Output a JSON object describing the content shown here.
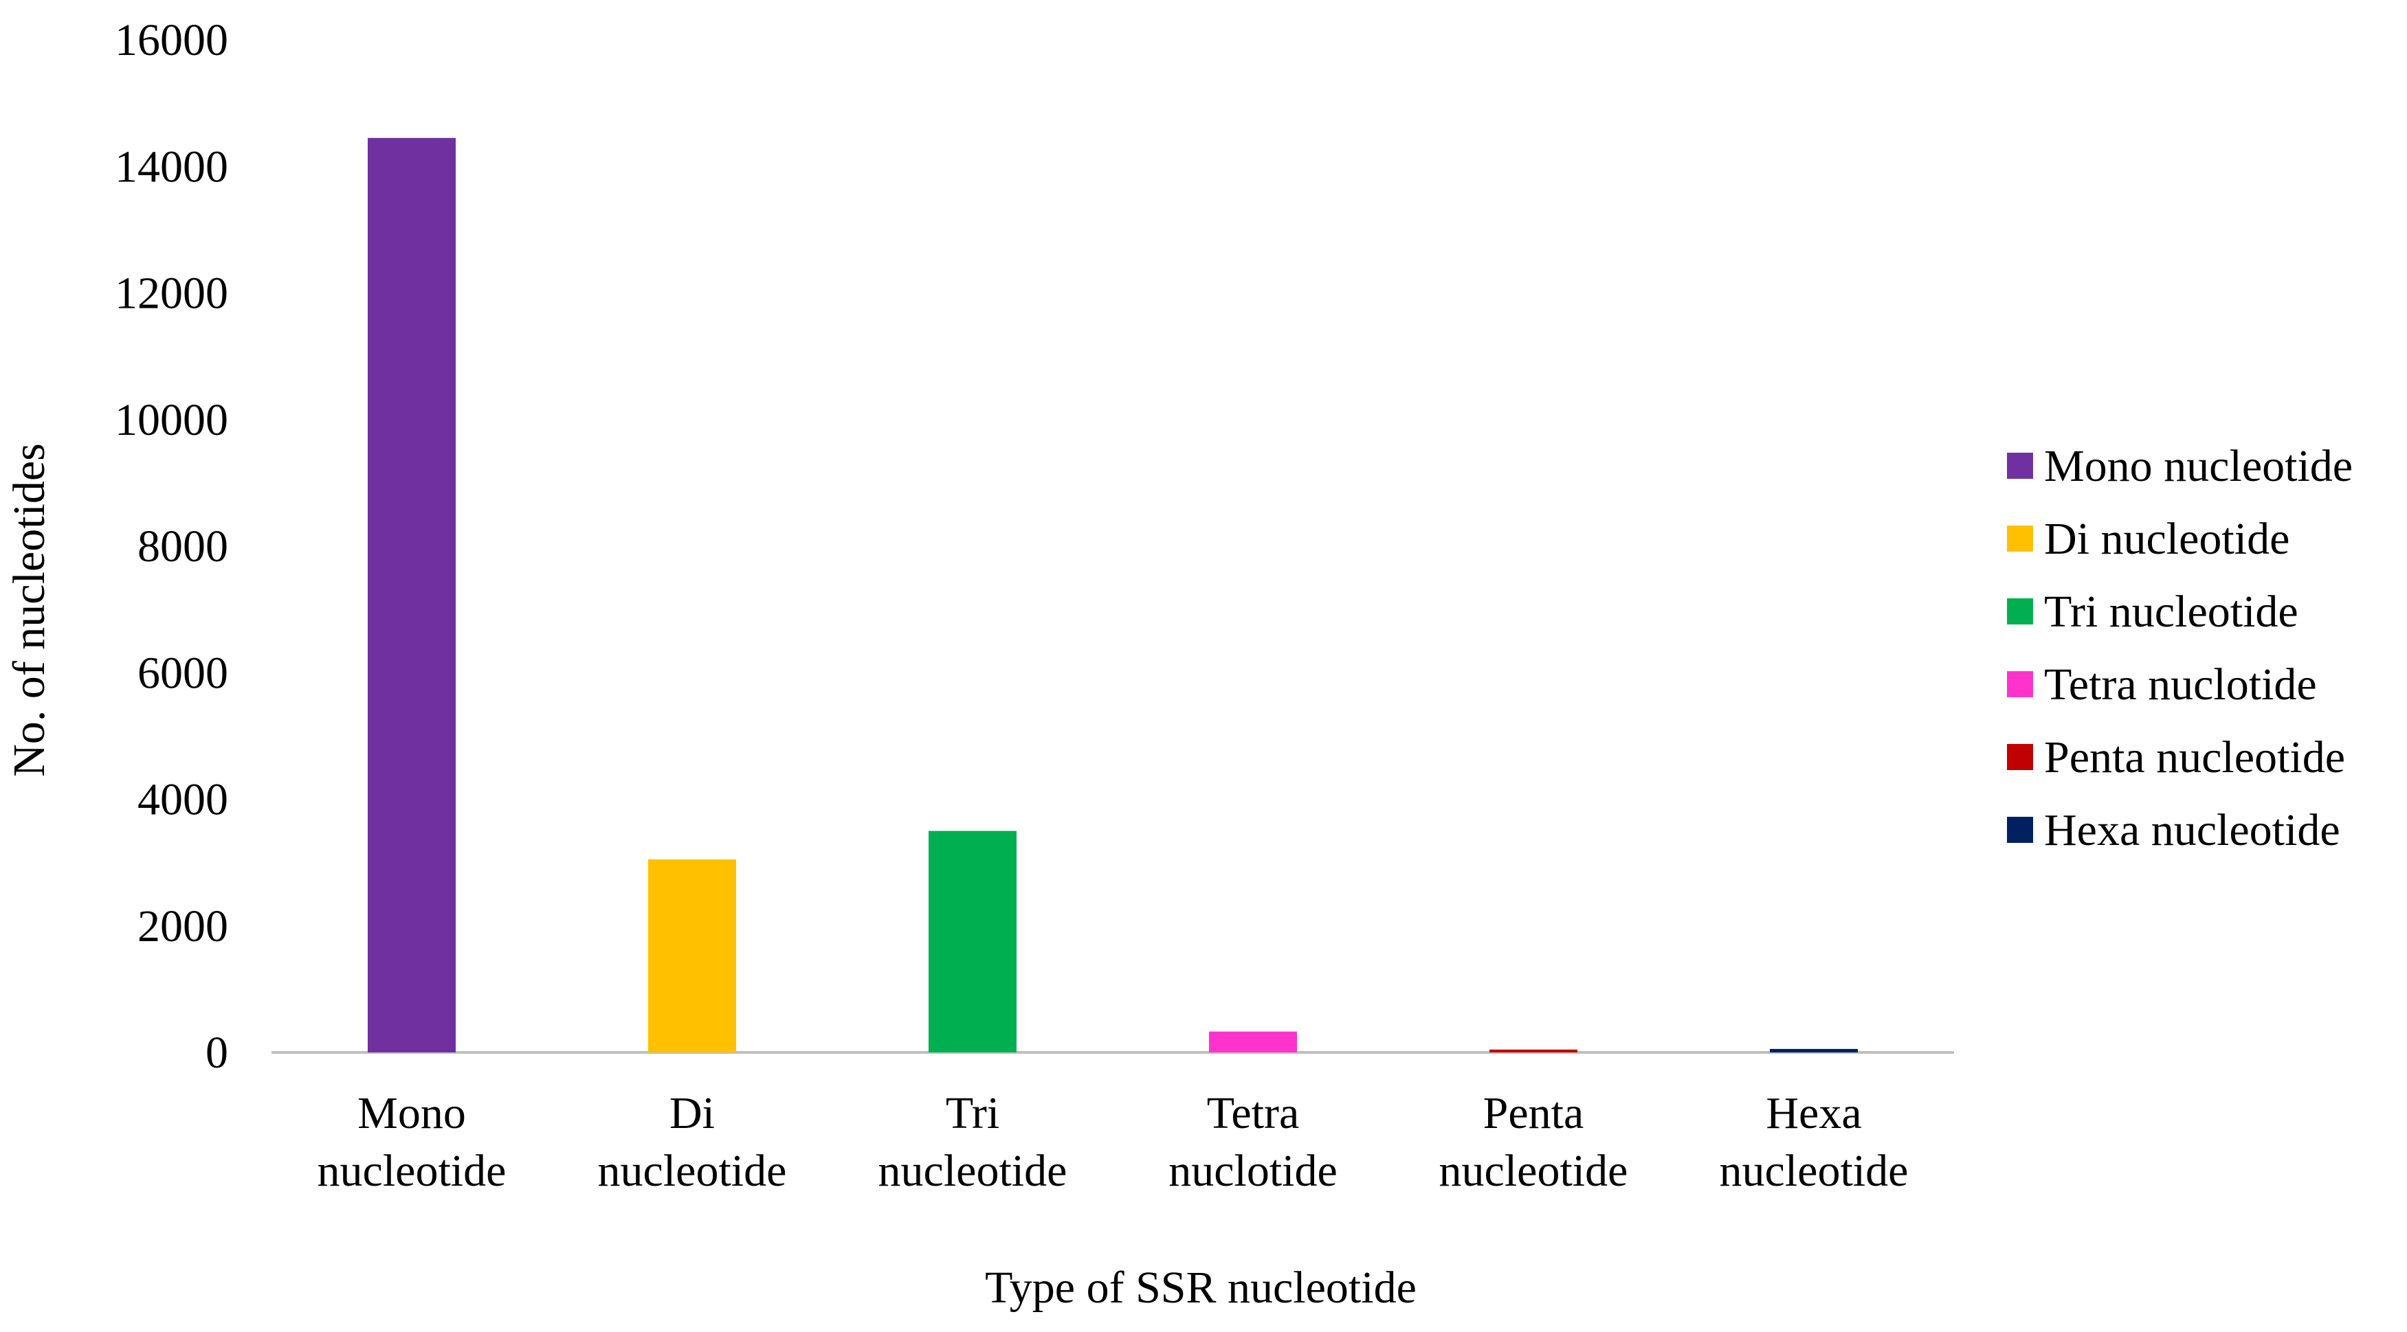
{
  "chart_data": {
    "type": "bar",
    "xlabel": "Type of SSR nucleotide",
    "ylabel": "No. of nucleotides",
    "ylim": [
      0,
      16000
    ],
    "yticks": [
      0,
      2000,
      4000,
      6000,
      8000,
      10000,
      12000,
      14000,
      16000
    ],
    "grid": false,
    "legend_position": "right",
    "categories": [
      {
        "lines": [
          "Mono",
          "nucleotide"
        ],
        "legend": "Mono nucleotide",
        "value": 14450,
        "color": "#7030a0"
      },
      {
        "lines": [
          "Di",
          "nucleotide"
        ],
        "legend": "Di nucleotide",
        "value": 3050,
        "color": "#ffc000"
      },
      {
        "lines": [
          "Tri",
          "nucleotide"
        ],
        "legend": "Tri nucleotide",
        "value": 3500,
        "color": "#00b050"
      },
      {
        "lines": [
          "Tetra",
          "nuclotide"
        ],
        "legend": "Tetra nuclotide",
        "value": 330,
        "color": "#ff33cc"
      },
      {
        "lines": [
          "Penta",
          "nucleotide"
        ],
        "legend": "Penta nucleotide",
        "value": 45,
        "color": "#c00000"
      },
      {
        "lines": [
          "Hexa",
          "nucleotide"
        ],
        "legend": "Hexa nucleotide",
        "value": 55,
        "color": "#002060"
      }
    ]
  }
}
